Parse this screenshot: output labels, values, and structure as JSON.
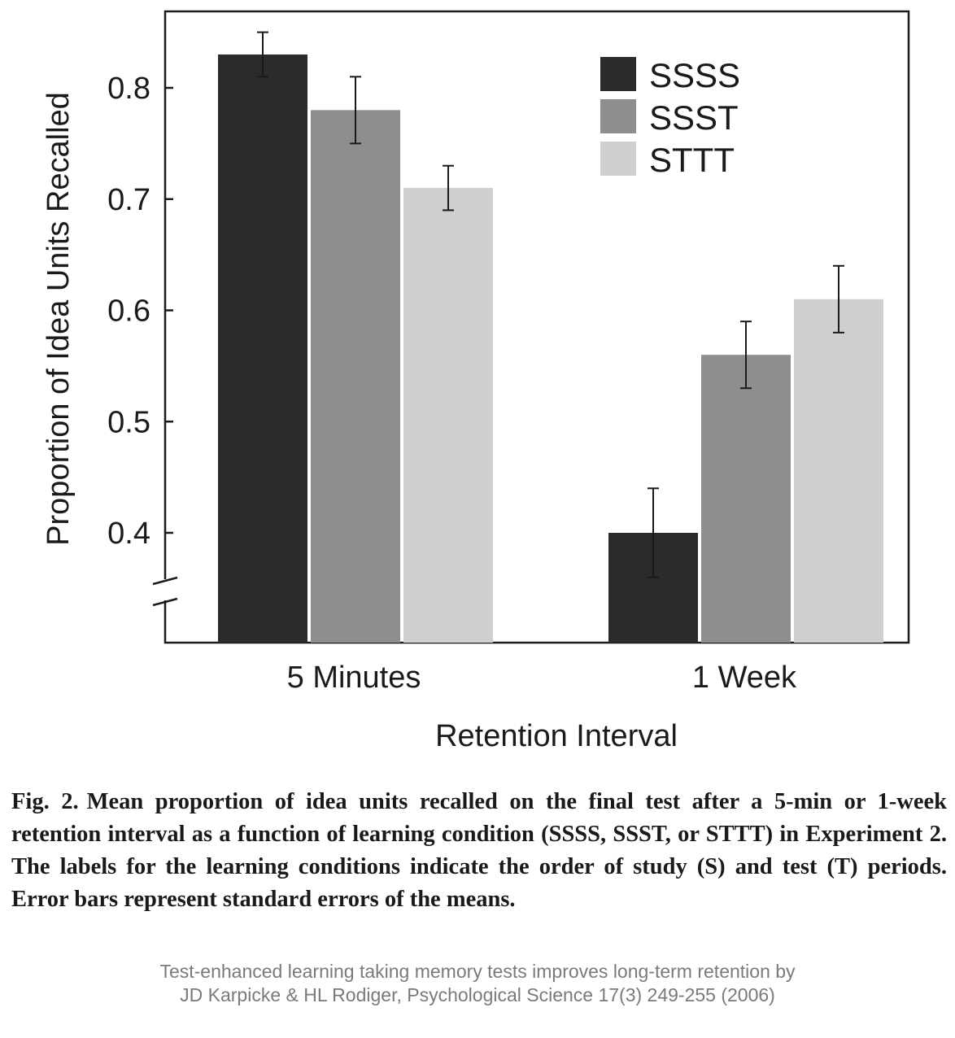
{
  "chart_data": {
    "type": "bar",
    "categories": [
      "5 Minutes",
      "1 Week"
    ],
    "series": [
      {
        "name": "SSSS",
        "color": "#2b2b2b",
        "values": [
          0.83,
          0.4
        ],
        "errors": [
          0.02,
          0.04
        ]
      },
      {
        "name": "SSST",
        "color": "#8e8e8e",
        "values": [
          0.78,
          0.56
        ],
        "errors": [
          0.03,
          0.03
        ]
      },
      {
        "name": "STTT",
        "color": "#cfcfcf",
        "values": [
          0.71,
          0.61
        ],
        "errors": [
          0.02,
          0.03
        ]
      }
    ],
    "xlabel": "Retention Interval",
    "ylabel": "Proportion of Idea Units Recalled",
    "ylim": [
      0.3,
      0.87
    ],
    "yticks": [
      0.4,
      0.5,
      0.6,
      0.7,
      0.8
    ],
    "ytick_labels": [
      "0.4",
      "0.5",
      "0.6",
      "0.7",
      "0.8"
    ],
    "y_axis_break": true,
    "legend_position": "top-right",
    "grid": false
  },
  "caption": {
    "label": "Fig. 2.",
    "text": "Mean proportion of idea units recalled on the final test after a 5-min or 1-week retention interval as a function of learning condition (SSSS, SSST, or STTT) in Experiment 2. The labels for the learning conditions indicate the order of study (S) and test (T) periods. Error bars represent standard errors of the means."
  },
  "source": {
    "line1": "Test-enhanced learning taking memory tests improves long-term retention by",
    "line2": "JD Karpicke & HL Rodiger, Psychological Science 17(3) 249-255 (2006)"
  }
}
